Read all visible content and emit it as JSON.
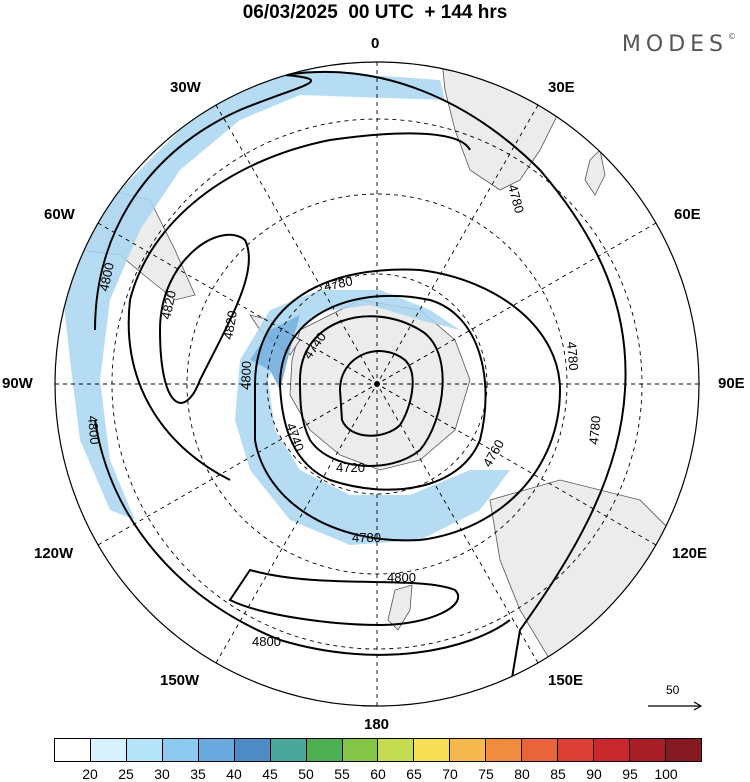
{
  "header": {
    "title": "06/03/2025  00 UTC  + 144 hrs",
    "brand": "MODES"
  },
  "longitude_labels": {
    "top": "0",
    "top_right": "30E",
    "right_upper": "60E",
    "right": "90E",
    "right_lower": "120E",
    "bottom_right": "150E",
    "bottom": "180",
    "bottom_left": "150W",
    "left_lower": "120W",
    "left": "90W",
    "left_upper": "60W",
    "top_left": "30W"
  },
  "contour_labels": [
    "4800",
    "4820",
    "4820",
    "4780",
    "4740",
    "4780",
    "4800",
    "4740",
    "4720",
    "4760",
    "4780",
    "4780",
    "4780",
    "4800",
    "4800",
    "4800"
  ],
  "vector_reference": {
    "value": "50"
  },
  "colorbar": {
    "labels": [
      "20",
      "25",
      "30",
      "35",
      "40",
      "45",
      "50",
      "55",
      "60",
      "65",
      "70",
      "75",
      "80",
      "85",
      "90",
      "95",
      "100"
    ],
    "colors": [
      "#ffffff",
      "#d8f2fc",
      "#b5e3f7",
      "#8ccaf0",
      "#6aaade",
      "#4e8cc6",
      "#4aa89a",
      "#4cb052",
      "#85c548",
      "#c6dc50",
      "#f7e055",
      "#f5b84e",
      "#ef8c40",
      "#e8643a",
      "#dd3f34",
      "#c8282e",
      "#a81e26",
      "#861a22"
    ]
  },
  "colors": {
    "land": "#ececec",
    "shading": "#a9d6f1",
    "contour": "#000000"
  }
}
